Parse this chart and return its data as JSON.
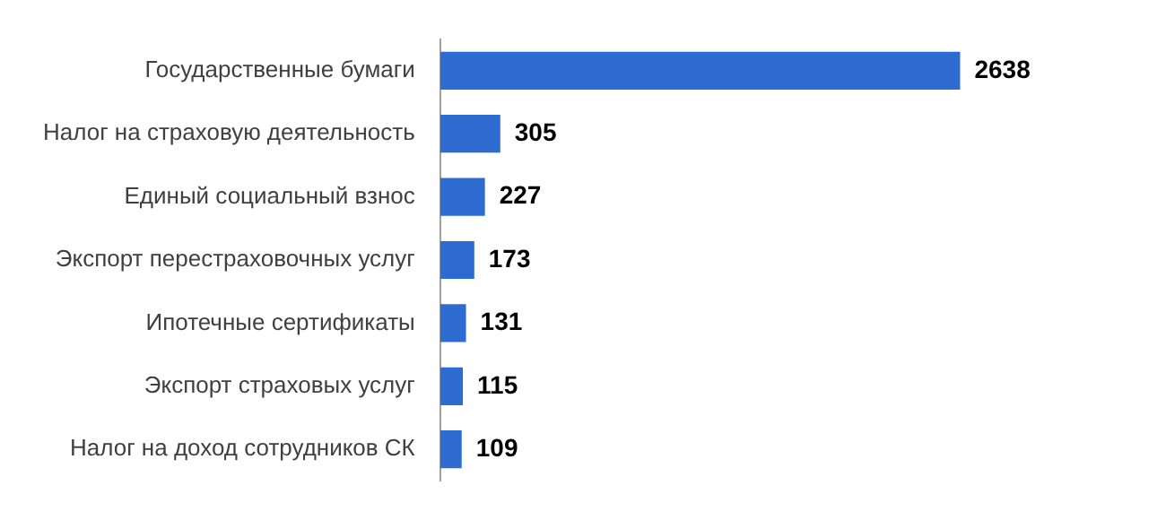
{
  "chart_data": {
    "type": "bar",
    "orientation": "horizontal",
    "categories": [
      "Государственные бумаги",
      "Налог на страховую деятельность",
      "Единый социальный взнос",
      "Экспорт перестраховочных услуг",
      "Ипотечные сертификаты",
      "Экспорт страховых услуг",
      "Налог на доход сотрудников СК"
    ],
    "values": [
      2638,
      305,
      227,
      173,
      131,
      115,
      109
    ],
    "color": "#2e6bd0",
    "data_labels": true,
    "legend": false,
    "tick_labels": "y"
  }
}
